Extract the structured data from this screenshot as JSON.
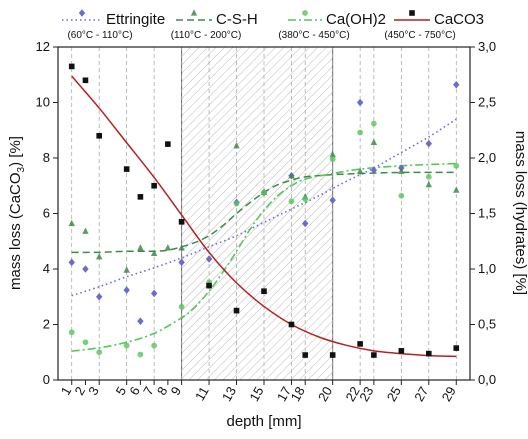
{
  "chart_data": {
    "type": "scatter",
    "xlabel": "depth [mm]",
    "ylabel_left": "mass loss (CaCO",
    "ylabel_left_sub": "3",
    "ylabel_left_end": ") [%]",
    "ylabel_right": "mass loss (hydrates) [%]",
    "x_ticks": [
      1,
      2,
      3,
      5,
      6,
      7,
      8,
      9,
      11,
      13,
      15,
      17,
      18,
      20,
      22,
      23,
      25,
      27,
      29
    ],
    "x_range": [
      0,
      30
    ],
    "ylim_left": [
      0,
      12
    ],
    "y_ticks_left": [
      "0",
      "2",
      "4",
      "6",
      "8",
      "10",
      "12"
    ],
    "ylim_right": [
      0,
      3
    ],
    "y_ticks_right": [
      "0,0",
      "0,5",
      "1,0",
      "1,5",
      "2,0",
      "2,5",
      "3,0"
    ],
    "shaded_region": [
      9,
      20
    ],
    "vertical_gridlines": [
      1,
      3,
      5,
      7,
      9,
      11,
      13,
      15,
      17,
      18,
      20,
      22,
      23,
      25,
      27,
      29
    ],
    "legend_position": "top",
    "series": [
      {
        "name": "Ettringite",
        "range": "(60°C - 110°C)",
        "axis": "right",
        "color": "#6b6bcf",
        "marker": "diamond",
        "line": "dotted",
        "points": [
          [
            1,
            1.06
          ],
          [
            2,
            1.0
          ],
          [
            3,
            0.75
          ],
          [
            5,
            0.81
          ],
          [
            6,
            0.53
          ],
          [
            7,
            0.78
          ],
          [
            9,
            1.06
          ],
          [
            11,
            1.09
          ],
          [
            13,
            1.6
          ],
          [
            15,
            1.69
          ],
          [
            17,
            1.84
          ],
          [
            18,
            1.41
          ],
          [
            20,
            1.62
          ],
          [
            22,
            2.5
          ],
          [
            23,
            1.89
          ],
          [
            25,
            1.91
          ],
          [
            27,
            2.13
          ],
          [
            29,
            2.66
          ]
        ],
        "fit": [
          [
            1,
            0.76
          ],
          [
            3,
            0.84
          ],
          [
            5,
            0.93
          ],
          [
            7,
            1.01
          ],
          [
            9,
            1.1
          ],
          [
            11,
            1.2
          ],
          [
            13,
            1.3
          ],
          [
            15,
            1.42
          ],
          [
            17,
            1.54
          ],
          [
            19,
            1.66
          ],
          [
            21,
            1.79
          ],
          [
            23,
            1.91
          ],
          [
            25,
            2.05
          ],
          [
            27,
            2.19
          ],
          [
            29,
            2.35
          ]
        ]
      },
      {
        "name": "C-S-H",
        "range": "(110°C - 200°C)",
        "axis": "right",
        "color": "#3f8a4a",
        "marker": "triangle",
        "line": "dashed",
        "points": [
          [
            1,
            1.41
          ],
          [
            2,
            1.34
          ],
          [
            3,
            1.11
          ],
          [
            5,
            0.99
          ],
          [
            6,
            1.19
          ],
          [
            7,
            1.14
          ],
          [
            8,
            1.19
          ],
          [
            9,
            1.19
          ],
          [
            11,
            0.86
          ],
          [
            13,
            2.11
          ],
          [
            15,
            1.69
          ],
          [
            17,
            1.84
          ],
          [
            18,
            1.65
          ],
          [
            20,
            2.03
          ],
          [
            22,
            1.88
          ],
          [
            23,
            2.14
          ],
          [
            25,
            1.88
          ],
          [
            27,
            1.76
          ],
          [
            29,
            1.71
          ]
        ],
        "fit": [
          [
            1,
            1.15
          ],
          [
            3,
            1.15
          ],
          [
            5,
            1.16
          ],
          [
            7,
            1.16
          ],
          [
            8,
            1.17
          ],
          [
            9,
            1.2
          ],
          [
            10,
            1.24
          ],
          [
            11,
            1.3
          ],
          [
            12,
            1.39
          ],
          [
            13,
            1.5
          ],
          [
            14,
            1.6
          ],
          [
            15,
            1.69
          ],
          [
            16,
            1.76
          ],
          [
            17,
            1.8
          ],
          [
            18,
            1.83
          ],
          [
            20,
            1.85
          ],
          [
            22,
            1.86
          ],
          [
            25,
            1.87
          ],
          [
            29,
            1.87
          ]
        ]
      },
      {
        "name": "Ca(OH)2",
        "range": "(380°C - 450°C)",
        "axis": "right",
        "color": "#56c656",
        "marker": "circle",
        "line": "dashdot",
        "points": [
          [
            1,
            0.43
          ],
          [
            2,
            0.34
          ],
          [
            3,
            0.25
          ],
          [
            5,
            0.31
          ],
          [
            6,
            0.23
          ],
          [
            7,
            0.31
          ],
          [
            9,
            0.66
          ],
          [
            11,
            0.88
          ],
          [
            13,
            1.59
          ],
          [
            15,
            1.69
          ],
          [
            17,
            1.61
          ],
          [
            18,
            1.63
          ],
          [
            20,
            1.99
          ],
          [
            22,
            2.23
          ],
          [
            23,
            2.31
          ],
          [
            25,
            1.66
          ],
          [
            27,
            1.83
          ],
          [
            29,
            1.93
          ]
        ],
        "fit": [
          [
            1,
            0.26
          ],
          [
            3,
            0.29
          ],
          [
            5,
            0.34
          ],
          [
            7,
            0.42
          ],
          [
            9,
            0.56
          ],
          [
            10,
            0.66
          ],
          [
            11,
            0.8
          ],
          [
            12,
            0.97
          ],
          [
            13,
            1.16
          ],
          [
            14,
            1.36
          ],
          [
            15,
            1.53
          ],
          [
            16,
            1.66
          ],
          [
            17,
            1.75
          ],
          [
            18,
            1.81
          ],
          [
            20,
            1.86
          ],
          [
            22,
            1.9
          ],
          [
            25,
            1.93
          ],
          [
            29,
            1.95
          ]
        ]
      },
      {
        "name": "CaCO3",
        "range": "(450°C - 750°C)",
        "axis": "left",
        "color": "#b22222",
        "marker": "square",
        "marker_color": "#111111",
        "line": "solid",
        "points": [
          [
            1,
            11.3
          ],
          [
            2,
            10.8
          ],
          [
            3,
            8.8
          ],
          [
            5,
            7.6
          ],
          [
            6,
            6.6
          ],
          [
            7,
            7.0
          ],
          [
            8,
            8.5
          ],
          [
            9,
            5.7
          ],
          [
            11,
            3.4
          ],
          [
            13,
            2.5
          ],
          [
            15,
            3.2
          ],
          [
            17,
            2.0
          ],
          [
            18,
            0.9
          ],
          [
            20,
            0.9
          ],
          [
            22,
            1.3
          ],
          [
            23,
            0.9
          ],
          [
            25,
            1.05
          ],
          [
            27,
            0.95
          ],
          [
            29,
            1.15
          ]
        ],
        "fit": [
          [
            1,
            10.95
          ],
          [
            3,
            9.8
          ],
          [
            5,
            8.55
          ],
          [
            7,
            7.3
          ],
          [
            9,
            5.95
          ],
          [
            11,
            4.6
          ],
          [
            13,
            3.5
          ],
          [
            15,
            2.65
          ],
          [
            17,
            2.0
          ],
          [
            19,
            1.55
          ],
          [
            21,
            1.25
          ],
          [
            23,
            1.05
          ],
          [
            25,
            0.95
          ],
          [
            27,
            0.88
          ],
          [
            29,
            0.85
          ]
        ]
      }
    ]
  }
}
